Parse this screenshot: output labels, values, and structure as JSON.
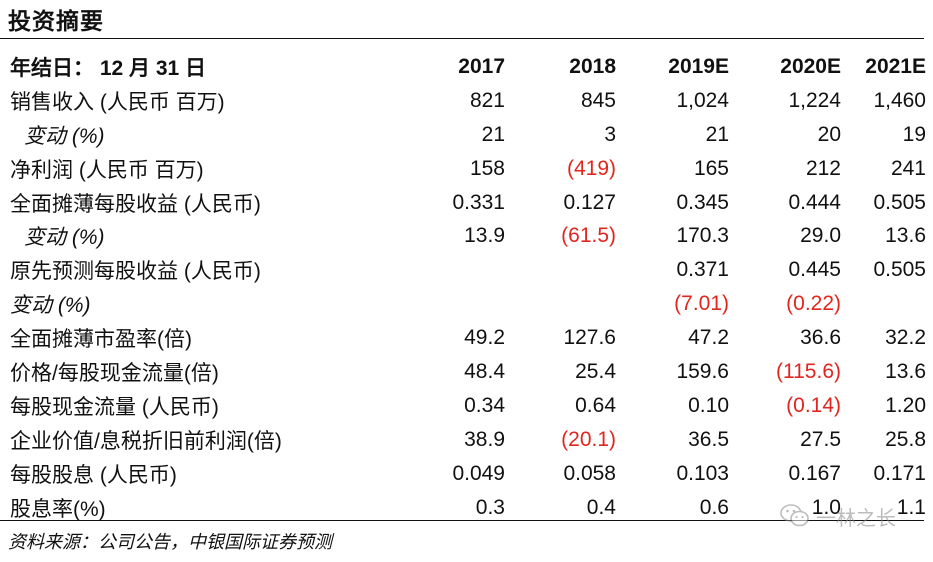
{
  "header": {
    "title": "投资摘要"
  },
  "table": {
    "columns": [
      "年结日： 12 月 31 日",
      "2017",
      "2018",
      "2019E",
      "2020E",
      "2021E"
    ],
    "rows": [
      {
        "label": "销售收入 (人民币 百万)",
        "style": "normal",
        "values": [
          "821",
          "845",
          "1,024",
          "1,224",
          "1,460"
        ],
        "negative": [
          false,
          false,
          false,
          false,
          false
        ]
      },
      {
        "label": "变动 (%)",
        "style": "indent",
        "values": [
          "21",
          "3",
          "21",
          "20",
          "19"
        ],
        "negative": [
          false,
          false,
          false,
          false,
          false
        ]
      },
      {
        "label": "净利润 (人民币 百万)",
        "style": "normal",
        "values": [
          "158",
          "(419)",
          "165",
          "212",
          "241"
        ],
        "negative": [
          false,
          true,
          false,
          false,
          false
        ]
      },
      {
        "label": "全面摊薄每股收益 (人民币)",
        "style": "normal",
        "values": [
          "0.331",
          "0.127",
          "0.345",
          "0.444",
          "0.505"
        ],
        "negative": [
          false,
          false,
          false,
          false,
          false
        ]
      },
      {
        "label": "变动 (%)",
        "style": "indent",
        "values": [
          "13.9",
          "(61.5)",
          "170.3",
          "29.0",
          "13.6"
        ],
        "negative": [
          false,
          true,
          false,
          false,
          false
        ]
      },
      {
        "label": "原先预测每股收益 (人民币)",
        "style": "normal",
        "values": [
          "",
          "",
          "0.371",
          "0.445",
          "0.505"
        ],
        "negative": [
          false,
          false,
          false,
          false,
          false
        ]
      },
      {
        "label": "变动 (%)",
        "style": "italic",
        "values": [
          "",
          "",
          "(7.01)",
          "(0.22)",
          ""
        ],
        "negative": [
          false,
          false,
          true,
          true,
          false
        ]
      },
      {
        "label": "全面摊薄市盈率(倍)",
        "style": "normal",
        "values": [
          "49.2",
          "127.6",
          "47.2",
          "36.6",
          "32.2"
        ],
        "negative": [
          false,
          false,
          false,
          false,
          false
        ]
      },
      {
        "label": "价格/每股现金流量(倍)",
        "style": "normal",
        "values": [
          "48.4",
          "25.4",
          "159.6",
          "(115.6)",
          "13.6"
        ],
        "negative": [
          false,
          false,
          false,
          true,
          false
        ]
      },
      {
        "label": "每股现金流量 (人民币)",
        "style": "normal",
        "values": [
          "0.34",
          "0.64",
          "0.10",
          "(0.14)",
          "1.20"
        ],
        "negative": [
          false,
          false,
          false,
          true,
          false
        ]
      },
      {
        "label": "企业价值/息税折旧前利润(倍)",
        "style": "normal",
        "values": [
          "38.9",
          "(20.1)",
          "36.5",
          "27.5",
          "25.8"
        ],
        "negative": [
          false,
          true,
          false,
          false,
          false
        ]
      },
      {
        "label": "每股股息 (人民币)",
        "style": "normal",
        "values": [
          "0.049",
          "0.058",
          "0.103",
          "0.167",
          "0.171"
        ],
        "negative": [
          false,
          false,
          false,
          false,
          false
        ]
      },
      {
        "label": "股息率(%)",
        "style": "normal",
        "values": [
          "0.3",
          "0.4",
          "0.6",
          "1.0",
          "1.1"
        ],
        "negative": [
          false,
          false,
          false,
          false,
          false
        ]
      }
    ]
  },
  "footer": {
    "source": "资料来源：公司公告，中银国际证券预测"
  },
  "watermark": {
    "text": "一林之长",
    "icon": "wechat-icon"
  },
  "colors": {
    "negative": "#e0261e",
    "text": "#111111"
  }
}
